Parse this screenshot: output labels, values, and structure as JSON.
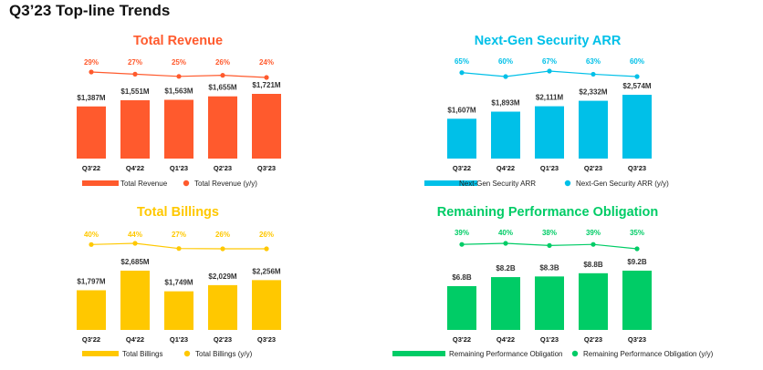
{
  "page": {
    "title": "Q3’23 Top-line Trends"
  },
  "chart_data": [
    {
      "id": "revenue",
      "type": "bar",
      "title": "Total Revenue",
      "color": "#FF5A2D",
      "categories": [
        "Q3'22",
        "Q4'22",
        "Q1'23",
        "Q2'23",
        "Q3'23"
      ],
      "values": [
        1387,
        1551,
        1563,
        1655,
        1721
      ],
      "value_labels": [
        "$1,387M",
        "$1,551M",
        "$1,563M",
        "$1,655M",
        "$1,721M"
      ],
      "growth": [
        29,
        27,
        25,
        26,
        24
      ],
      "growth_labels": [
        "29%",
        "27%",
        "25%",
        "26%",
        "24%"
      ],
      "legend": {
        "bar": "Total Revenue",
        "line": "Total Revenue (y/y)"
      }
    },
    {
      "id": "ngs",
      "type": "bar",
      "title": "Next-Gen Security ARR",
      "color": "#00C0E8",
      "categories": [
        "Q3'22",
        "Q4'22",
        "Q1'23",
        "Q2'23",
        "Q3'23"
      ],
      "values": [
        1607,
        1893,
        2111,
        2332,
        2574
      ],
      "value_labels": [
        "$1,607M",
        "$1,893M",
        "$2,111M",
        "$2,332M",
        "$2,574M"
      ],
      "growth": [
        65,
        60,
        67,
        63,
        60
      ],
      "growth_labels": [
        "65%",
        "60%",
        "67%",
        "63%",
        "60%"
      ],
      "legend": {
        "bar": "Next-Gen Security ARR",
        "line": "Next-Gen Security ARR (y/y)"
      }
    },
    {
      "id": "billings",
      "type": "bar",
      "title": "Total Billings",
      "color": "#FFC800",
      "categories": [
        "Q3'22",
        "Q4'22",
        "Q1'23",
        "Q2'23",
        "Q3'23"
      ],
      "values": [
        1797,
        2685,
        1749,
        2029,
        2256
      ],
      "value_labels": [
        "$1,797M",
        "$2,685M",
        "$1,749M",
        "$2,029M",
        "$2,256M"
      ],
      "growth": [
        40,
        44,
        27,
        26,
        26
      ],
      "growth_labels": [
        "40%",
        "44%",
        "27%",
        "26%",
        "26%"
      ],
      "legend": {
        "bar": "Total Billings",
        "line": "Total Billings (y/y)"
      }
    },
    {
      "id": "rpo",
      "type": "bar",
      "title": "Remaining Performance Obligation",
      "color": "#00CC66",
      "categories": [
        "Q3'22",
        "Q4'22",
        "Q1'23",
        "Q2'23",
        "Q3'23"
      ],
      "values": [
        6.8,
        8.2,
        8.3,
        8.8,
        9.2
      ],
      "value_labels": [
        "$6.8B",
        "$8.2B",
        "$8.3B",
        "$8.8B",
        "$9.2B"
      ],
      "growth": [
        39,
        40,
        38,
        39,
        35
      ],
      "growth_labels": [
        "39%",
        "40%",
        "38%",
        "39%",
        "35%"
      ],
      "legend": {
        "bar": "Remaining Performance Obligation",
        "line": "Remaining Performance Obligation (y/y)"
      }
    }
  ]
}
